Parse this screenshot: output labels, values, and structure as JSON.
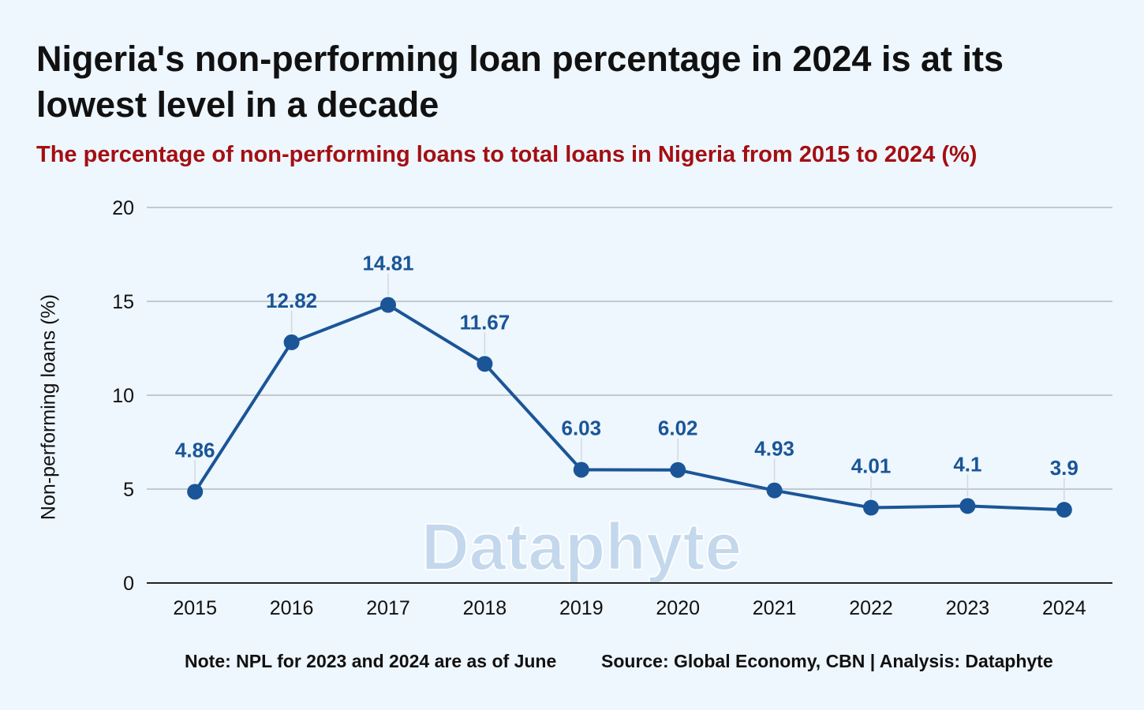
{
  "title": "Nigeria's non-performing loan percentage in 2024 is at its lowest level in a decade",
  "subtitle": "The percentage of non-performing loans to total loans in Nigeria from 2015 to 2024 (%)",
  "watermark": "Dataphyte",
  "footer": {
    "note": "Note: NPL for 2023 and 2024 are as of June",
    "source": "Source: Global Economy, CBN | Analysis: Dataphyte"
  },
  "colors": {
    "background": "#eef6fe",
    "line": "#1a5597",
    "data_label": "#1a5597",
    "subtitle": "#a30f12",
    "watermark": "#bcd3ea"
  },
  "chart_data": {
    "type": "line",
    "title": "Nigeria's non-performing loan percentage in 2024 is at its lowest level in a decade",
    "subtitle": "The percentage of non-performing loans to total loans in Nigeria from 2015 to 2024 (%)",
    "xlabel": "",
    "ylabel": "Non-performing loans (%)",
    "categories": [
      "2015",
      "2016",
      "2017",
      "2018",
      "2019",
      "2020",
      "2021",
      "2022",
      "2023",
      "2024"
    ],
    "series": [
      {
        "values": [
          4.86,
          12.82,
          14.81,
          11.67,
          6.03,
          6.02,
          4.93,
          4.01,
          4.1,
          3.9
        ],
        "labels": [
          "4.86",
          "12.82",
          "14.81",
          "11.67",
          "6.03",
          "6.02",
          "4.93",
          "4.01",
          "4.1",
          "3.9"
        ]
      }
    ],
    "ylim": [
      0,
      20
    ],
    "yticks": [
      "0",
      "5",
      "10",
      "15",
      "20"
    ],
    "grid": true,
    "legend": "none"
  }
}
